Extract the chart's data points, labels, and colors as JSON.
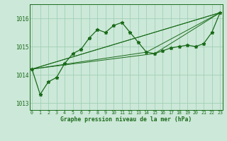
{
  "xlabel": "Graphe pression niveau de la mer (hPa)",
  "x_labels": [
    "0",
    "1",
    "2",
    "3",
    "4",
    "5",
    "6",
    "7",
    "8",
    "9",
    "10",
    "11",
    "12",
    "13",
    "14",
    "15",
    "16",
    "17",
    "18",
    "19",
    "20",
    "21",
    "22",
    "23"
  ],
  "ylim": [
    1012.75,
    1016.5
  ],
  "xlim": [
    -0.3,
    23.3
  ],
  "yticks": [
    1013,
    1014,
    1015,
    1016
  ],
  "bg_color": "#cce8d8",
  "grid_color": "#99ccb0",
  "line_color": "#1a6b1a",
  "main_line": [
    1014.2,
    1013.3,
    1013.75,
    1013.9,
    1014.4,
    1014.75,
    1014.9,
    1015.3,
    1015.6,
    1015.5,
    1015.75,
    1015.85,
    1015.5,
    1015.15,
    1014.8,
    1014.75,
    1014.85,
    1014.95,
    1015.0,
    1015.05,
    1015.0,
    1015.1,
    1015.5,
    1016.2
  ],
  "straight_lines": [
    {
      "x": [
        0,
        23
      ],
      "y": [
        1014.2,
        1016.2
      ]
    },
    {
      "x": [
        0,
        23
      ],
      "y": [
        1014.2,
        1016.2
      ]
    },
    {
      "x": [
        0,
        14
      ],
      "y": [
        1014.2,
        1014.8
      ]
    },
    {
      "x": [
        0,
        15
      ],
      "y": [
        1014.2,
        1014.75
      ]
    },
    {
      "x": [
        14,
        23
      ],
      "y": [
        1014.8,
        1016.2
      ]
    },
    {
      "x": [
        15,
        23
      ],
      "y": [
        1014.75,
        1016.2
      ]
    }
  ]
}
